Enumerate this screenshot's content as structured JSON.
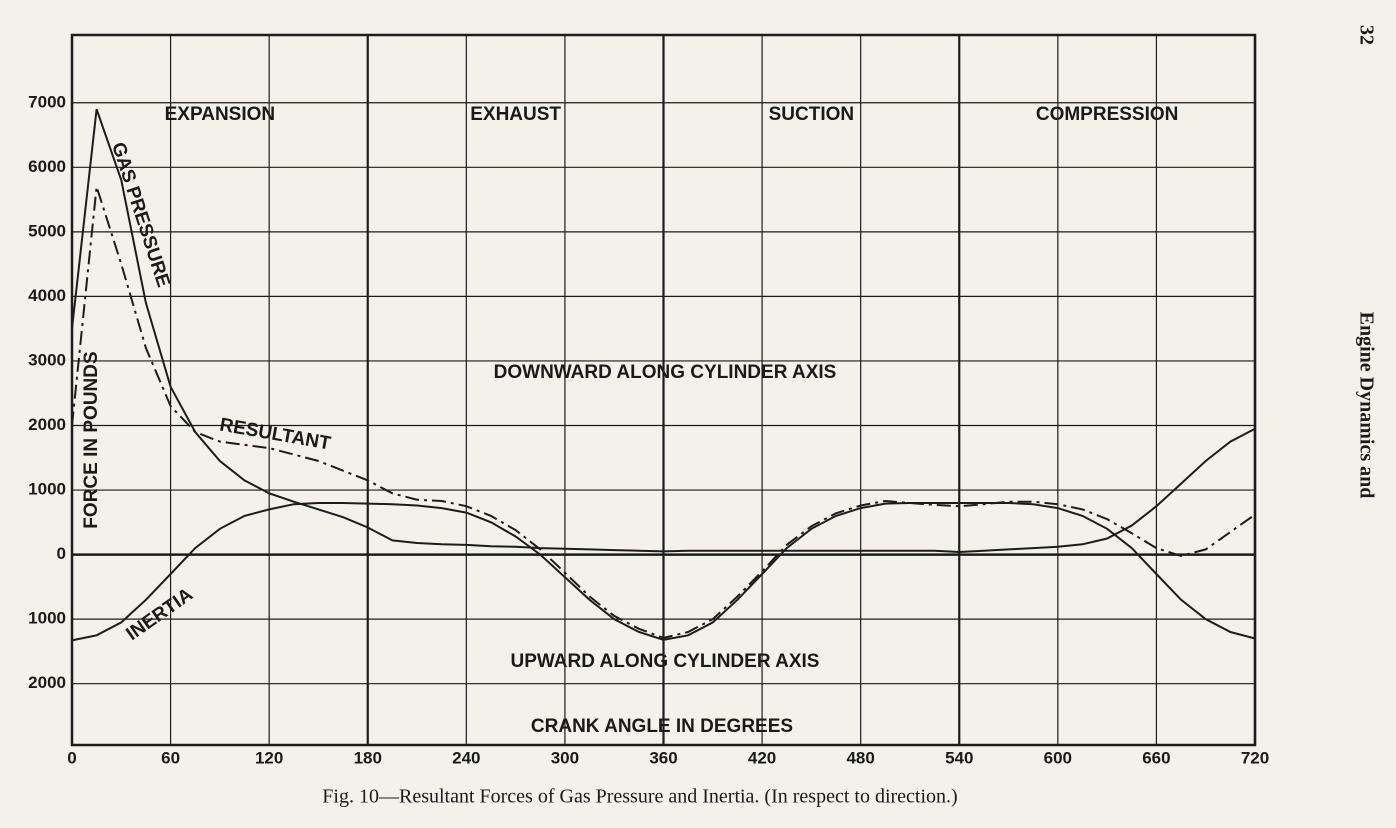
{
  "chart_data": {
    "type": "line",
    "caption": "Fig. 10—Resultant Forces of Gas Pressure and Inertia.  (In respect to direction.)",
    "page_number": "32",
    "running_head": "Engine Dynamics and",
    "xlabel": "CRANK ANGLE IN DEGREES",
    "ylabel": "FORCE IN POUNDS",
    "annotations": [
      "DOWNWARD ALONG CYLINDER AXIS",
      "UPWARD ALONG CYLINDER AXIS"
    ],
    "phases": [
      {
        "label": "EXPANSION",
        "start": 0,
        "end": 180
      },
      {
        "label": "EXHAUST",
        "start": 180,
        "end": 360
      },
      {
        "label": "SUCTION",
        "start": 360,
        "end": 540
      },
      {
        "label": "COMPRESSION",
        "start": 540,
        "end": 720
      }
    ],
    "x": [
      0,
      15,
      30,
      45,
      60,
      75,
      90,
      105,
      120,
      135,
      150,
      165,
      180,
      195,
      210,
      225,
      240,
      255,
      270,
      285,
      300,
      315,
      330,
      345,
      360,
      375,
      390,
      405,
      420,
      435,
      450,
      465,
      480,
      495,
      510,
      525,
      540,
      555,
      570,
      585,
      600,
      615,
      630,
      645,
      660,
      675,
      690,
      705,
      720
    ],
    "series": [
      {
        "name": "GAS PRESSURE",
        "color": "#1c1c1c",
        "style": "solid",
        "values": [
          3500,
          6900,
          5800,
          3900,
          2600,
          1900,
          1450,
          1150,
          950,
          820,
          700,
          580,
          420,
          220,
          180,
          160,
          150,
          130,
          120,
          100,
          90,
          80,
          70,
          60,
          50,
          60,
          60,
          60,
          60,
          60,
          60,
          60,
          60,
          60,
          60,
          60,
          40,
          60,
          80,
          100,
          120,
          160,
          250,
          450,
          750,
          1100,
          1450,
          1750,
          1950
        ]
      },
      {
        "name": "RESULTANT",
        "color": "#1c1c1c",
        "style": "dash-dot",
        "values": [
          2000,
          5700,
          4500,
          3200,
          2300,
          1900,
          1750,
          1700,
          1650,
          1550,
          1450,
          1300,
          1150,
          950,
          850,
          830,
          750,
          600,
          380,
          80,
          -280,
          -650,
          -950,
          -1150,
          -1290,
          -1200,
          -1000,
          -650,
          -260,
          150,
          440,
          640,
          760,
          830,
          800,
          770,
          750,
          780,
          820,
          820,
          780,
          700,
          550,
          330,
          100,
          -20,
          80,
          350,
          620
        ]
      },
      {
        "name": "INERTIA",
        "color": "#1c1c1c",
        "style": "solid",
        "values": [
          -1330,
          -1250,
          -1050,
          -700,
          -300,
          100,
          400,
          600,
          700,
          780,
          800,
          800,
          790,
          780,
          760,
          720,
          650,
          500,
          280,
          0,
          -350,
          -700,
          -1000,
          -1200,
          -1320,
          -1250,
          -1050,
          -700,
          -300,
          100,
          400,
          600,
          720,
          790,
          800,
          800,
          800,
          800,
          800,
          780,
          720,
          600,
          400,
          100,
          -300,
          -700,
          -1000,
          -1200,
          -1300
        ]
      }
    ],
    "xlim": [
      0,
      720
    ],
    "xticks": [
      0,
      60,
      120,
      180,
      240,
      300,
      360,
      420,
      480,
      540,
      600,
      660,
      720
    ],
    "ylim": [
      -2950,
      8050
    ],
    "yticks": [
      7000,
      6000,
      5000,
      4000,
      3000,
      2000,
      1000,
      0,
      {
        "value": -1000,
        "label": "1000"
      },
      {
        "value": -2000,
        "label": "2000"
      }
    ],
    "grid": true
  }
}
